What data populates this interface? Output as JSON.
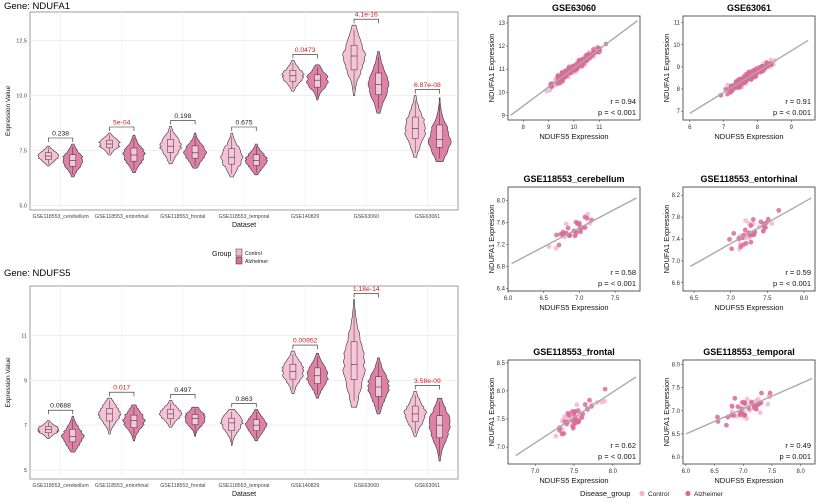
{
  "colors": {
    "control": "#f4b6cd",
    "alzheimer": "#d96b96",
    "box_fill": "#f7c7d8",
    "panel_bg": "#ebebeb",
    "grid": "#ffffff",
    "sig_red": "#d7191c",
    "ns_black": "#222222",
    "regline": "#aaaaaa"
  },
  "legend_top": {
    "title": "Group",
    "items": [
      "Control",
      "Alzheimer"
    ]
  },
  "legend_bottom": {
    "title": "Disease_group",
    "items": [
      "Control",
      "Alzheimer"
    ]
  },
  "chart_data": [
    {
      "type": "violin",
      "title": "Gene: NDUFA1",
      "xlabel": "Dataset",
      "ylabel": "Expression Value",
      "ylim": [
        4.8,
        13.8
      ],
      "yticks": [
        5.0,
        7.5,
        10.0,
        12.5
      ],
      "ytick_labels": [
        "5.0",
        "7.5",
        "10.0",
        "12.5"
      ],
      "categories": [
        "GSE118553_cerebellum",
        "GSE118553_entorhinal",
        "GSE118553_frontal",
        "GSE118553_temporal",
        "GSE140829",
        "GSE63060",
        "GSE63061"
      ],
      "series": [
        {
          "name": "Control",
          "medians": [
            7.25,
            7.8,
            7.7,
            7.2,
            10.9,
            11.8,
            8.5
          ],
          "min": [
            6.8,
            7.3,
            6.9,
            6.3,
            10.2,
            10.0,
            7.2
          ],
          "max": [
            7.7,
            8.3,
            8.6,
            8.3,
            11.6,
            13.2,
            10.0
          ]
        },
        {
          "name": "Alzheimer",
          "medians": [
            7.05,
            7.3,
            7.4,
            7.05,
            10.7,
            10.5,
            8.0
          ],
          "min": [
            6.3,
            6.5,
            6.7,
            6.4,
            9.8,
            9.2,
            7.0
          ],
          "max": [
            7.8,
            8.2,
            8.3,
            7.8,
            11.4,
            12.0,
            9.9
          ]
        }
      ],
      "pvalues": [
        "0.238",
        "5e-04",
        "0.198",
        "0.675",
        "0.0473",
        "4.1e-16",
        "6.87e-08"
      ],
      "significant": [
        false,
        true,
        false,
        false,
        true,
        true,
        true
      ]
    },
    {
      "type": "violin",
      "title": "Gene: NDUFS5",
      "xlabel": "Dataset",
      "ylabel": "Expression Value",
      "ylim": [
        4.6,
        13.2
      ],
      "yticks": [
        5,
        7,
        9,
        11
      ],
      "ytick_labels": [
        "5",
        "7",
        "9",
        "11"
      ],
      "categories": [
        "GSE118553_cerebellum",
        "GSE118553_entorhinal",
        "GSE118553_frontal",
        "GSE118553_temporal",
        "GSE140829",
        "GSE63060",
        "GSE63061"
      ],
      "series": [
        {
          "name": "Control",
          "medians": [
            6.8,
            7.5,
            7.5,
            7.1,
            9.4,
            9.7,
            7.5
          ],
          "min": [
            6.4,
            6.6,
            6.9,
            6.1,
            8.4,
            7.8,
            6.5
          ],
          "max": [
            7.2,
            8.2,
            8.1,
            7.7,
            10.3,
            12.6,
            8.5
          ]
        },
        {
          "name": "Alzheimer",
          "medians": [
            6.5,
            7.2,
            7.3,
            7.0,
            9.2,
            8.7,
            7.0
          ],
          "min": [
            5.8,
            6.3,
            6.5,
            6.3,
            8.2,
            7.5,
            5.4
          ],
          "max": [
            7.4,
            7.9,
            7.8,
            7.7,
            10.2,
            10.0,
            8.2
          ]
        }
      ],
      "pvalues": [
        "0.0688",
        "0.017",
        "0.497",
        "0.863",
        "0.00952",
        "1.18e-14",
        "3.58e-09"
      ],
      "significant": [
        false,
        true,
        false,
        false,
        true,
        true,
        true
      ]
    },
    {
      "type": "scatter",
      "title": "GSE63060",
      "xlabel": "NDUFS5 Expression",
      "ylabel": "NDUFA1 Expression",
      "xlim": [
        7.4,
        12.6
      ],
      "ylim": [
        8.8,
        13.3
      ],
      "xticks": [
        8,
        9,
        10,
        11
      ],
      "yticks": [
        9,
        10,
        11,
        12,
        13
      ],
      "fit": {
        "x": [
          7.5,
          12.5
        ],
        "y": [
          9.0,
          13.1
        ]
      },
      "r_label": "r = 0.94",
      "p_label": "p = < 0.001",
      "n_control": 90,
      "n_alzheimer": 110
    },
    {
      "type": "scatter",
      "title": "GSE63061",
      "xlabel": "NDUFS5 Expression",
      "ylabel": "NDUFA1 Expression",
      "xlim": [
        5.8,
        9.7
      ],
      "ylim": [
        6.6,
        11.3
      ],
      "xticks": [
        6,
        7,
        8,
        9
      ],
      "yticks": [
        7,
        8,
        9,
        10,
        11
      ],
      "fit": {
        "x": [
          6.0,
          9.5
        ],
        "y": [
          6.9,
          10.2
        ]
      },
      "r_label": "r = 0.91",
      "p_label": "p = < 0.001",
      "n_control": 120,
      "n_alzheimer": 150
    },
    {
      "type": "scatter",
      "title": "GSE118553_cerebellum",
      "xlabel": "NDUFS5 Expression",
      "ylabel": "NDUFA1 Expression",
      "xlim": [
        6.0,
        7.85
      ],
      "ylim": [
        6.35,
        8.25
      ],
      "xticks": [
        6.0,
        6.5,
        7.0,
        7.5
      ],
      "yticks": [
        6.4,
        6.8,
        7.2,
        7.6,
        8.0
      ],
      "fit": {
        "x": [
          6.05,
          7.8
        ],
        "y": [
          6.85,
          8.05
        ]
      },
      "r_label": "r = 0.58",
      "p_label": "p = < 0.001",
      "n_control": 12,
      "n_alzheimer": 22
    },
    {
      "type": "scatter",
      "title": "GSE118553_entorhinal",
      "xlabel": "NDUFS5 Expression",
      "ylabel": "NDUFA1 Expression",
      "xlim": [
        6.35,
        8.15
      ],
      "ylim": [
        6.45,
        8.35
      ],
      "xticks": [
        6.5,
        7.0,
        7.5,
        8.0
      ],
      "yticks": [
        6.6,
        7.0,
        7.4,
        7.8,
        8.2
      ],
      "fit": {
        "x": [
          6.45,
          8.1
        ],
        "y": [
          6.9,
          8.15
        ]
      },
      "r_label": "r = 0.59",
      "p_label": "p = < 0.001",
      "n_control": 18,
      "n_alzheimer": 26
    },
    {
      "type": "scatter",
      "title": "GSE118553_frontal",
      "xlabel": "NDUFS5 Expression",
      "ylabel": "NDUFA1 Expression",
      "xlim": [
        6.65,
        8.35
      ],
      "ylim": [
        6.7,
        8.55
      ],
      "xticks": [
        7.0,
        7.5,
        8.0
      ],
      "yticks": [
        7.0,
        7.5,
        8.0,
        8.5
      ],
      "fit": {
        "x": [
          6.75,
          8.3
        ],
        "y": [
          6.85,
          8.25
        ]
      },
      "r_label": "r = 0.62",
      "p_label": "p = < 0.001",
      "n_control": 20,
      "n_alzheimer": 30
    },
    {
      "type": "scatter",
      "title": "GSE118553_temporal",
      "xlabel": "NDUFS5 Expression",
      "ylabel": "NDUFA1 Expression",
      "xlim": [
        5.95,
        8.25
      ],
      "ylim": [
        5.85,
        8.1
      ],
      "xticks": [
        6.0,
        6.5,
        7.0,
        7.5,
        8.0
      ],
      "yticks": [
        6.0,
        6.5,
        7.0,
        7.5,
        8.0
      ],
      "fit": {
        "x": [
          6.0,
          8.2
        ],
        "y": [
          6.5,
          7.7
        ]
      },
      "r_label": "r = 0.49",
      "p_label": "p = 0.001",
      "n_control": 20,
      "n_alzheimer": 30
    }
  ]
}
